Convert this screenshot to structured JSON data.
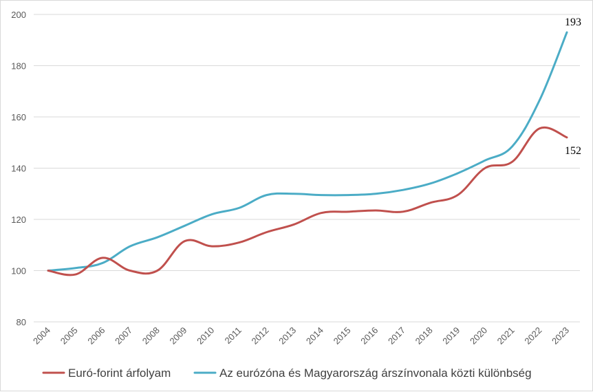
{
  "chart_data": {
    "type": "line",
    "title": "",
    "xlabel": "",
    "ylabel": "",
    "categories": [
      "2004",
      "2005",
      "2006",
      "2007",
      "2008",
      "2009",
      "2010",
      "2011",
      "2012",
      "2013",
      "2014",
      "2015",
      "2016",
      "2017",
      "2018",
      "2019",
      "2020",
      "2021",
      "2022",
      "2023"
    ],
    "ylim": [
      80,
      200
    ],
    "yticks": [
      80,
      100,
      120,
      140,
      160,
      180,
      200
    ],
    "grid": "horizontal",
    "legend": "bottom",
    "series": [
      {
        "name": "Euró-forint árfolyam",
        "color": "#c0504d",
        "values": [
          100,
          98.5,
          105,
          100,
          100,
          111.5,
          109.5,
          111,
          115,
          118,
          122.5,
          123,
          123.5,
          123,
          126.5,
          129.5,
          140,
          142.5,
          155.5,
          152
        ],
        "end_label": "152"
      },
      {
        "name": "Az eurózóna és Magyarország árszínvonala közti különbség",
        "color": "#4bacc6",
        "values": [
          100,
          101,
          103,
          109.5,
          113,
          117.5,
          122,
          124.5,
          129.5,
          130,
          129.5,
          129.5,
          130,
          131.5,
          134,
          138,
          143,
          148.5,
          166.5,
          193
        ],
        "end_label": "193"
      }
    ]
  }
}
